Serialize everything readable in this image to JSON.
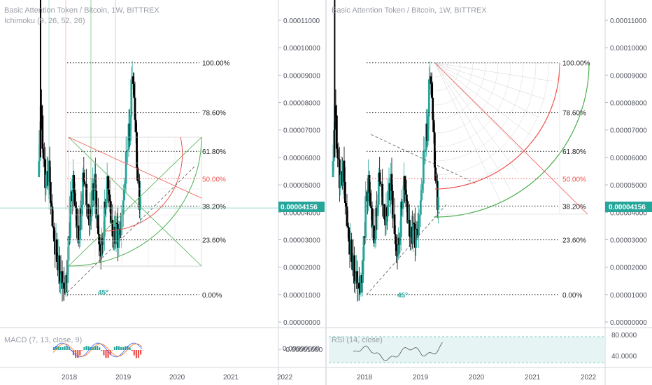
{
  "colors": {
    "up": "#26a69a",
    "down": "#000000",
    "fib_red": "#ef5350",
    "fan_green": "#4caf50",
    "price_tag": "#26a69a",
    "grid": "#d1d4dc"
  },
  "panes": [
    {
      "title": "Basic Attention Token / Bitcoin, 1W, BITTREX",
      "indicator": "Ichimoku (9, 26, 52, 26)",
      "sub_indicator": "MACD (7, 13, close, 9)",
      "y_ticks": [
        "0.00011000",
        "0.00010000",
        "0.00009000",
        "0.00008000",
        "0.00007000",
        "0.00006000",
        "0.00005000",
        "0.00004000",
        "0.00003000",
        "0.00002000",
        "0.00001000",
        "0.00000000",
        "-0.00001000"
      ],
      "sub_y_ticks": [
        "0.00000000"
      ],
      "price_tag": "0.00004156",
      "x_ticks": [
        "2018",
        "2019",
        "2020",
        "2021",
        "2022"
      ],
      "fib_levels": [
        "100.00%",
        "78.60%",
        "61.80%",
        "50.00%",
        "38.20%",
        "23.60%",
        "0.00%"
      ],
      "angle_label": "45°"
    },
    {
      "title": "Basic Attention Token / Bitcoin, 1W, BITTREX",
      "sub_indicator": "RSI (14, close)",
      "y_ticks": [
        "0.00011000",
        "0.00010000",
        "0.00009000",
        "0.00008000",
        "0.00007000",
        "0.00006000",
        "0.00005000",
        "0.00004000",
        "0.00003000",
        "0.00002000",
        "0.00001000",
        "0.00000000"
      ],
      "sub_y_ticks": [
        "80.0000",
        "40.0000"
      ],
      "price_tag": "0.00004156",
      "x_ticks": [
        "2018",
        "2019",
        "2020",
        "2021",
        "2022"
      ],
      "fib_levels": [
        "100.00%",
        "78.60%",
        "61.80%",
        "50.00%",
        "38.20%",
        "23.60%",
        "0.00%"
      ],
      "angle_label": "45°"
    }
  ],
  "chart_data": [
    {
      "type": "candlestick",
      "title": "Basic Attention Token / Bitcoin, 1W, BITTREX",
      "ylim": [
        -1e-05,
        0.000115
      ],
      "xlim": [
        2017.4,
        2022.15
      ],
      "price": 4.156e-05,
      "close_series": [
        {
          "t": 2017.45,
          "v": 4.8e-05
        },
        {
          "t": 2017.5,
          "v": 8e-05
        },
        {
          "t": 2017.55,
          "v": 5.8e-05
        },
        {
          "t": 2017.6,
          "v": 5e-05
        },
        {
          "t": 2017.65,
          "v": 5.5e-05
        },
        {
          "t": 2017.7,
          "v": 4e-05
        },
        {
          "t": 2017.75,
          "v": 3e-05
        },
        {
          "t": 2017.8,
          "v": 2.5e-05
        },
        {
          "t": 2017.85,
          "v": 1.8e-05
        },
        {
          "t": 2017.9,
          "v": 1.5e-05
        },
        {
          "t": 2017.95,
          "v": 1.1e-05
        },
        {
          "t": 2018.0,
          "v": 2e-05
        },
        {
          "t": 2018.05,
          "v": 4.2e-05
        },
        {
          "t": 2018.1,
          "v": 5e-05
        },
        {
          "t": 2018.15,
          "v": 4e-05
        },
        {
          "t": 2018.2,
          "v": 3e-05
        },
        {
          "t": 2018.25,
          "v": 4.2e-05
        },
        {
          "t": 2018.3,
          "v": 5.5e-05
        },
        {
          "t": 2018.35,
          "v": 4.5e-05
        },
        {
          "t": 2018.4,
          "v": 3.5e-05
        },
        {
          "t": 2018.45,
          "v": 4.5e-05
        },
        {
          "t": 2018.5,
          "v": 5e-05
        },
        {
          "t": 2018.55,
          "v": 3.6e-05
        },
        {
          "t": 2018.6,
          "v": 2.5e-05
        },
        {
          "t": 2018.65,
          "v": 3e-05
        },
        {
          "t": 2018.7,
          "v": 4.5e-05
        },
        {
          "t": 2018.75,
          "v": 5.2e-05
        },
        {
          "t": 2018.8,
          "v": 3.8e-05
        },
        {
          "t": 2018.85,
          "v": 3e-05
        },
        {
          "t": 2018.9,
          "v": 3.3e-05
        },
        {
          "t": 2018.95,
          "v": 3e-05
        },
        {
          "t": 2019.0,
          "v": 3.6e-05
        },
        {
          "t": 2019.05,
          "v": 4.8e-05
        },
        {
          "t": 2019.1,
          "v": 6.5e-05
        },
        {
          "t": 2019.15,
          "v": 7e-05
        },
        {
          "t": 2019.2,
          "v": 9.3e-05
        },
        {
          "t": 2019.25,
          "v": 7.5e-05
        },
        {
          "t": 2019.3,
          "v": 5e-05
        },
        {
          "t": 2019.35,
          "v": 4.2e-05
        }
      ],
      "fibonacci": {
        "low": 1e-05,
        "high": 9.45e-05,
        "levels": [
          1.0,
          0.786,
          0.618,
          0.5,
          0.382,
          0.236,
          0.0
        ]
      }
    }
  ]
}
